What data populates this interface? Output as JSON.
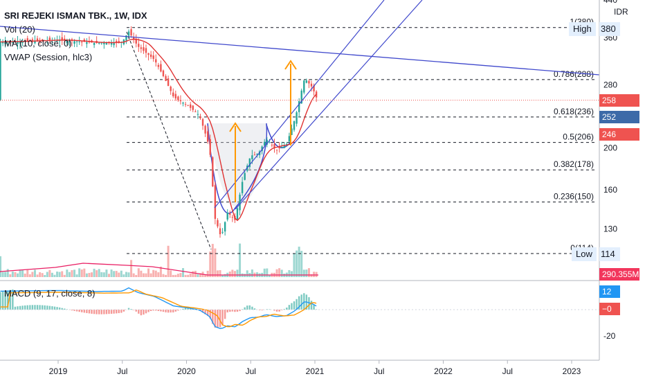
{
  "header": {
    "title": "SRI REJEKI ISMAN TBK., 1W, IDX",
    "currency": "IDR",
    "indicators": [
      "Vol (20)",
      "MA (10, close, 0)",
      "VWAP (Session, hlc3)"
    ],
    "macd_label": "MACD (9, 17, close, 8)"
  },
  "price_axis": {
    "ticks": [
      "440",
      "380",
      "360",
      "280",
      "200",
      "160",
      "130",
      "114"
    ],
    "last_ticks_extra": [
      "130"
    ]
  },
  "macd_axis": {
    "ticks": [
      "-20"
    ]
  },
  "time_axis": {
    "ticks": [
      "2019",
      "Jul",
      "2020",
      "Jul",
      "2021",
      "Jul",
      "2022",
      "Jul",
      "2023"
    ]
  },
  "price_tags": {
    "high_label": "High",
    "high_value": "380",
    "low_label": "Low",
    "low_value": "114",
    "last": "258",
    "ma": "252",
    "vwap": "246",
    "volume": "290.355M",
    "macd": "12",
    "signal": "−0"
  },
  "fib_levels": [
    {
      "label": "1(380)"
    },
    {
      "label": "0.786(288)"
    },
    {
      "label": "0.618(236)"
    },
    {
      "label": "0.5(206)"
    },
    {
      "label": "0.382(178)"
    },
    {
      "label": "0.236(150)"
    },
    {
      "label": "0(114)"
    }
  ],
  "colors": {
    "up": "#26a69a",
    "down": "#ef5350",
    "ma": "#e03131",
    "trend": "#3f48cc",
    "macd": "#2196f3",
    "signal": "#ff9800",
    "arrow": "#ff9800",
    "last_box": "#ef5350",
    "ma_box": "#3d6aa8",
    "vol_box": "#f2365c"
  },
  "chart_data": {
    "type": "line",
    "title": "SRI REJEKI ISMAN TBK., 1W, IDX",
    "ylabel": "IDR",
    "y_scale": "log",
    "ylim": [
      104,
      440
    ],
    "x": [
      "2018-07",
      "2019-01",
      "2019-07",
      "2019-08",
      "2019-10",
      "2019-12",
      "2020-02",
      "2020-03",
      "2020-04",
      "2020-05",
      "2020-06",
      "2020-07",
      "2020-08",
      "2020-09",
      "2020-10",
      "2020-11",
      "2020-12",
      "2021-01"
    ],
    "series": [
      {
        "name": "close",
        "values": [
          352,
          356,
          350,
          344,
          282,
          252,
          238,
          160,
          128,
          138,
          190,
          196,
          210,
          198,
          204,
          226,
          290,
          258
        ]
      }
    ],
    "fib_retracement": {
      "high": 380,
      "low": 114,
      "levels": [
        0,
        0.236,
        0.382,
        0.5,
        0.618,
        0.786,
        1
      ]
    },
    "last_price": 258,
    "ma10": 252,
    "vwap": 246,
    "volume_last": "290.355M",
    "macd": {
      "macd": 12,
      "signal": 0,
      "ylim": [
        -27,
        17
      ]
    }
  }
}
